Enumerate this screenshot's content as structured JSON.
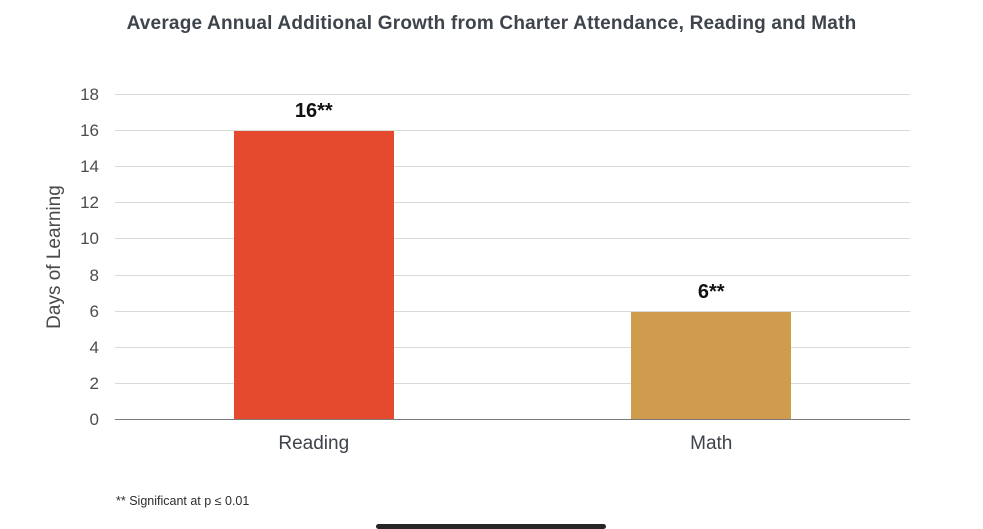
{
  "chart_data": {
    "type": "bar",
    "title": "Average Annual Additional Growth from Charter Attendance, Reading and Math",
    "categories": [
      "Reading",
      "Math"
    ],
    "values": [
      16,
      6
    ],
    "value_labels": [
      "16**",
      "6**"
    ],
    "bar_colors": [
      "#e64a2e",
      "#cf9b4c"
    ],
    "xlabel": "",
    "ylabel": "Days of Learning",
    "ylim": [
      0,
      18
    ],
    "ytick_step": 2,
    "grid": true,
    "legend": "none",
    "footnote": "** Significant at p ≤ 0.01"
  }
}
